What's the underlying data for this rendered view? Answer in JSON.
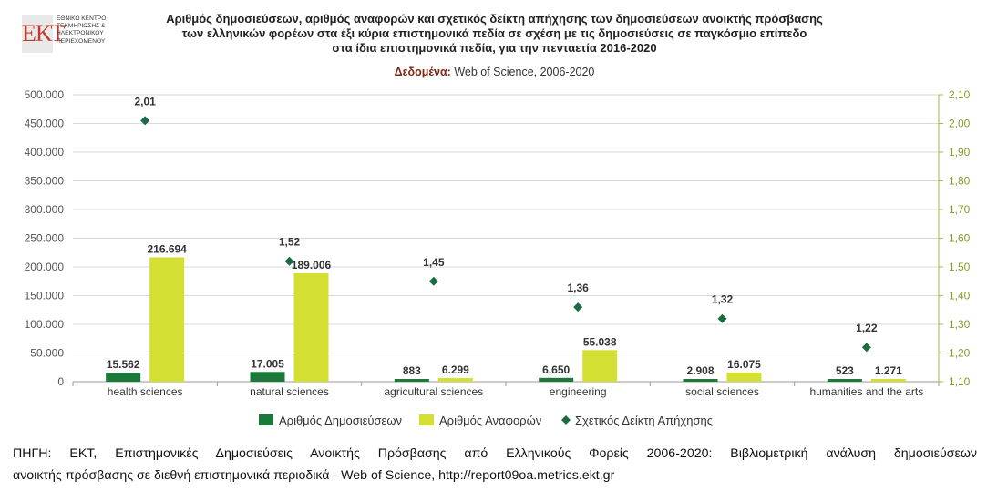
{
  "logo": {
    "mark": "ΕΚΤ",
    "lines": [
      "ΕΘΝΙΚΟ ΚΕΝΤΡΟ",
      "ΤΕΚΜΗΡΙΩΣΗΣ &",
      "ΗΛΕΚΤΡΟΝΙΚΟΥ",
      "ΠΕΡΙΕΧΟΜΕΝΟΥ"
    ]
  },
  "header": {
    "title_lines": [
      "Αριθμός δημοσιεύσεων, αριθμός αναφορών και σχετικός δείκτη απήχησης των δημοσιεύσεων ανοικτής πρόσβασης",
      "των ελληνικών φορέων στα έξι κύρια επιστημονικά πεδία σε σχέση με τις δημοσιεύσεις σε παγκόσμιο επίπεδο",
      "στα ίδια επιστημονικά πεδία, για την πενταετία 2016-2020"
    ],
    "subtitle_label": "Δεδομένα:",
    "subtitle_value": " Web of Science, 2006-2020"
  },
  "chart_data": {
    "type": "bar",
    "categories": [
      "health sciences",
      "natural sciences",
      "agricultural sciences",
      "engineering",
      "social sciences",
      "humanities and the arts"
    ],
    "series": [
      {
        "name": "Αριθμός Δημοσιεύσεων",
        "type": "bar",
        "axis": "left",
        "color": "#1a7a3a",
        "values": [
          15562,
          17005,
          883,
          6650,
          2908,
          523
        ],
        "labels": [
          "15.562",
          "17.005",
          "883",
          "6.650",
          "2.908",
          "523"
        ]
      },
      {
        "name": "Αριθμός Αναφορών",
        "type": "bar",
        "axis": "left",
        "color": "#d4df33",
        "values": [
          216694,
          189006,
          6299,
          55038,
          16075,
          1271
        ],
        "labels": [
          "216.694",
          "189.006",
          "6.299",
          "55.038",
          "16.075",
          "1.271"
        ]
      },
      {
        "name": "Σχετικός Δείκτη Απήχησης",
        "type": "scatter",
        "axis": "right",
        "color": "#1d6b45",
        "values": [
          2.01,
          1.52,
          1.45,
          1.36,
          1.32,
          1.22
        ],
        "labels": [
          "2,01",
          "1,52",
          "1,45",
          "1,36",
          "1,32",
          "1,22"
        ]
      }
    ],
    "y_left": {
      "range": [
        0,
        500000
      ],
      "ticks": [
        "0",
        "50.000",
        "100.000",
        "150.000",
        "200.000",
        "250.000",
        "300.000",
        "350.000",
        "400.000",
        "450.000",
        "500.000"
      ]
    },
    "y_right": {
      "range": [
        1.1,
        2.1
      ],
      "ticks": [
        "1,10",
        "1,20",
        "1,30",
        "1,40",
        "1,50",
        "1,60",
        "1,70",
        "1,80",
        "1,90",
        "2,00",
        "2,10"
      ]
    },
    "grid": true,
    "legend": "bottom"
  },
  "colors": {
    "left_axis_text": "#555555",
    "right_axis_text": "#8a9a2a",
    "grid": "#d9d9d9"
  },
  "source": {
    "lines": [
      "ΠΗΓΗ: ΕΚΤ, Επιστημονικές Δημοσιεύσεις Ανοικτής Πρόσβασης από Ελληνικούς Φορείς 2006-2020: Βιβλιομετρική ανάλυση δημοσιεύσεων",
      "ανοικτής πρόσβασης σε διεθνή επιστημονικά περιοδικά - Web of Science, http://report09oa.metrics.ekt.gr"
    ]
  }
}
